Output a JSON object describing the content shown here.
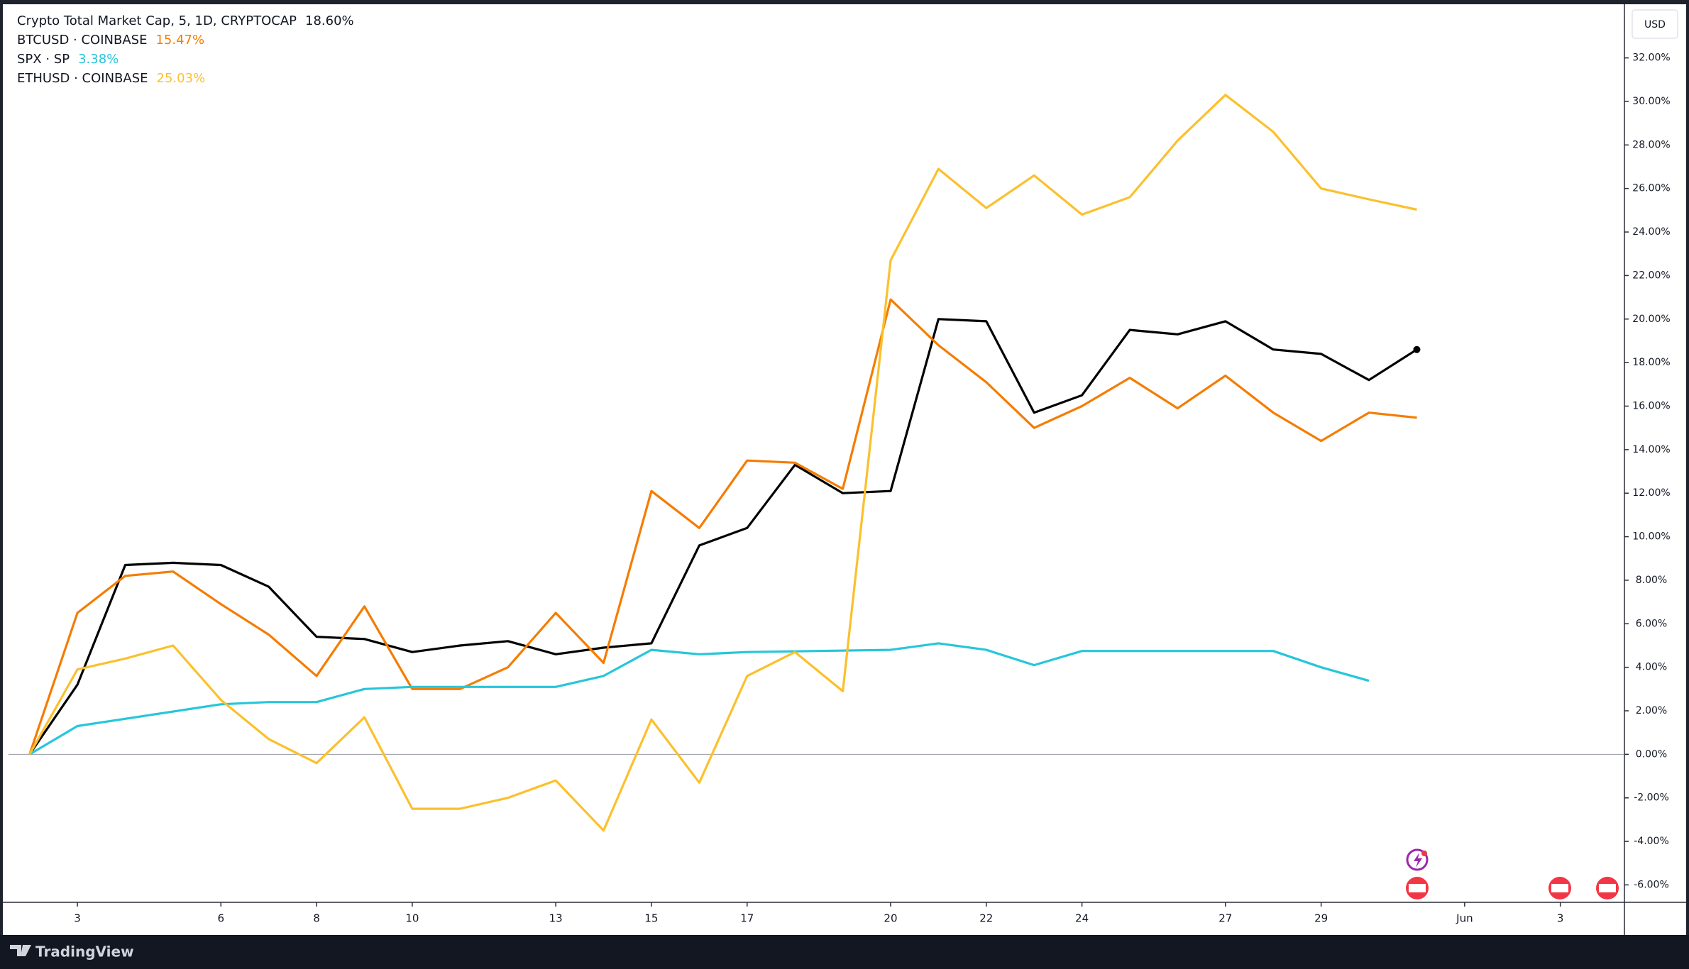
{
  "chart_data": {
    "type": "line",
    "currency": "USD",
    "branding": "TradingView",
    "xlim": [
      1.56,
      35.34
    ],
    "xticks": [
      3,
      6,
      8,
      10,
      13,
      15,
      17,
      20,
      22,
      24,
      27,
      29,
      {
        "value": 32,
        "label": "Jun"
      },
      {
        "value": 34,
        "label": "3"
      }
    ],
    "ylim": [
      -6.8,
      34.4
    ],
    "yticks": [
      {
        "value": -6,
        "label": "-6.00%"
      },
      {
        "value": -4,
        "label": "-4.00%"
      },
      {
        "value": -2,
        "label": "-2.00%"
      },
      {
        "value": 0,
        "label": "0.00%"
      },
      {
        "value": 2,
        "label": "2.00%"
      },
      {
        "value": 4,
        "label": "4.00%"
      },
      {
        "value": 6,
        "label": "6.00%"
      },
      {
        "value": 8,
        "label": "8.00%"
      },
      {
        "value": 10,
        "label": "10.00%"
      },
      {
        "value": 12,
        "label": "12.00%"
      },
      {
        "value": 14,
        "label": "14.00%"
      },
      {
        "value": 16,
        "label": "16.00%"
      },
      {
        "value": 18,
        "label": "18.00%"
      },
      {
        "value": 20,
        "label": "20.00%"
      },
      {
        "value": 22,
        "label": "22.00%"
      },
      {
        "value": 24,
        "label": "24.00%"
      },
      {
        "value": 26,
        "label": "26.00%"
      },
      {
        "value": 28,
        "label": "28.00%"
      },
      {
        "value": 30,
        "label": "30.00%"
      },
      {
        "value": 32,
        "label": "32.00%"
      }
    ],
    "series": [
      {
        "name": "Crypto Total Market Cap, 5, 1D, CRYPTOCAP",
        "color": "#000000",
        "last_label": "18.60%",
        "label_color": "#131722",
        "x": [
          2,
          3,
          4,
          5,
          6,
          7,
          8,
          9,
          10,
          11,
          12,
          13,
          14,
          15,
          16,
          17,
          18,
          19,
          20,
          21,
          22,
          23,
          24,
          25,
          26,
          27,
          28,
          29,
          30,
          31
        ],
        "values": [
          0,
          3.2,
          8.7,
          8.8,
          8.7,
          7.7,
          5.4,
          5.3,
          4.7,
          5.0,
          5.2,
          4.6,
          4.9,
          5.1,
          9.6,
          10.4,
          13.3,
          12.0,
          12.1,
          20.0,
          19.9,
          15.7,
          16.5,
          19.5,
          19.3,
          19.9,
          18.6,
          18.4,
          17.2,
          18.6
        ]
      },
      {
        "name": "BTCUSD · COINBASE",
        "color": "#f57c00",
        "last_label": "15.47%",
        "label_color": "#f57c00",
        "x": [
          2,
          3,
          4,
          5,
          6,
          7,
          8,
          9,
          10,
          11,
          12,
          13,
          14,
          15,
          16,
          17,
          18,
          19,
          20,
          21,
          22,
          23,
          24,
          25,
          26,
          27,
          28,
          29,
          30,
          31
        ],
        "values": [
          0,
          6.5,
          8.2,
          8.4,
          6.9,
          5.5,
          3.6,
          6.8,
          3.0,
          3.0,
          4.0,
          6.5,
          4.2,
          12.1,
          10.4,
          13.5,
          13.4,
          12.2,
          20.9,
          18.8,
          17.1,
          15.0,
          16.0,
          17.3,
          15.9,
          17.4,
          15.7,
          14.4,
          15.7,
          15.47
        ]
      },
      {
        "name": "SPX · SP",
        "color": "#26c6da",
        "last_label": "3.38%",
        "label_color": "#26c6da",
        "x": [
          2,
          3,
          6,
          7,
          8,
          9,
          10,
          13,
          14,
          15,
          16,
          17,
          20,
          21,
          22,
          23,
          24,
          27,
          28,
          29,
          30
        ],
        "values": [
          0,
          1.3,
          2.3,
          2.4,
          2.4,
          3.0,
          3.1,
          3.1,
          3.6,
          4.8,
          4.6,
          4.7,
          4.8,
          5.1,
          4.8,
          4.1,
          4.75,
          4.75,
          4.75,
          4.0,
          3.38
        ]
      },
      {
        "name": "ETHUSD · COINBASE",
        "color": "#fbc02d",
        "last_label": "25.03%",
        "label_color": "#fbc02d",
        "x": [
          2,
          3,
          4,
          5,
          6,
          7,
          8,
          9,
          10,
          11,
          12,
          13,
          14,
          15,
          16,
          17,
          18,
          19,
          20,
          21,
          22,
          23,
          24,
          25,
          26,
          27,
          28,
          29,
          30,
          31
        ],
        "values": [
          0,
          3.9,
          4.4,
          5.0,
          2.5,
          0.7,
          -0.4,
          1.7,
          -2.5,
          -2.5,
          -2.0,
          -1.2,
          -3.5,
          1.6,
          -1.3,
          3.6,
          4.7,
          2.9,
          22.7,
          26.9,
          25.1,
          26.6,
          24.8,
          25.6,
          28.2,
          30.3,
          28.6,
          26.0,
          25.5,
          25.03
        ]
      }
    ]
  }
}
